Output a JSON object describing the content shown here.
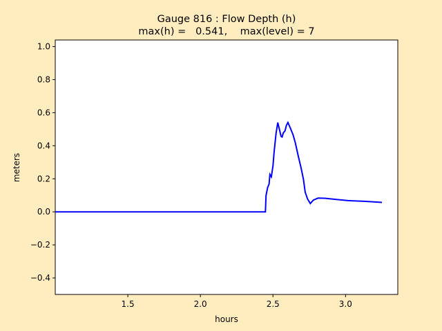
{
  "chart_data": {
    "type": "line",
    "title": "Gauge 816 : Flow Depth (h)",
    "subtitle": "max(h) =   0.541,    max(level) = 7",
    "xlabel": "hours",
    "ylabel": "meters",
    "xlim": [
      1.0,
      3.36
    ],
    "ylim": [
      -0.5,
      1.04
    ],
    "xticks": [
      1.5,
      2.0,
      2.5,
      3.0
    ],
    "xtick_labels": [
      "1.5",
      "2.0",
      "2.5",
      "3.0"
    ],
    "yticks": [
      -0.4,
      -0.2,
      0.0,
      0.2,
      0.4,
      0.6,
      0.8,
      1.0
    ],
    "ytick_labels": [
      "−0.4",
      "−0.2",
      "0.0",
      "0.2",
      "0.4",
      "0.6",
      "0.8",
      "1.0"
    ],
    "grid": false,
    "line_color": "#0000ff",
    "background_color": "#ffedbf",
    "series": [
      {
        "x": [
          1.0,
          2.381,
          2.448,
          2.452,
          2.463,
          2.473,
          2.479,
          2.489,
          2.5,
          2.508,
          2.521,
          2.533,
          2.544,
          2.556,
          2.563,
          2.571,
          2.583,
          2.592,
          2.603,
          2.619,
          2.638,
          2.654,
          2.675,
          2.694,
          2.71,
          2.722,
          2.738,
          2.757,
          2.778,
          2.81,
          2.857,
          2.937,
          3.016,
          3.127,
          3.251
        ],
        "y": [
          0.0,
          0.0,
          0.0,
          0.099,
          0.147,
          0.168,
          0.226,
          0.212,
          0.279,
          0.362,
          0.474,
          0.54,
          0.501,
          0.457,
          0.453,
          0.478,
          0.49,
          0.522,
          0.541,
          0.508,
          0.467,
          0.418,
          0.335,
          0.265,
          0.196,
          0.119,
          0.078,
          0.05,
          0.071,
          0.083,
          0.082,
          0.075,
          0.068,
          0.064,
          0.057
        ]
      }
    ]
  }
}
